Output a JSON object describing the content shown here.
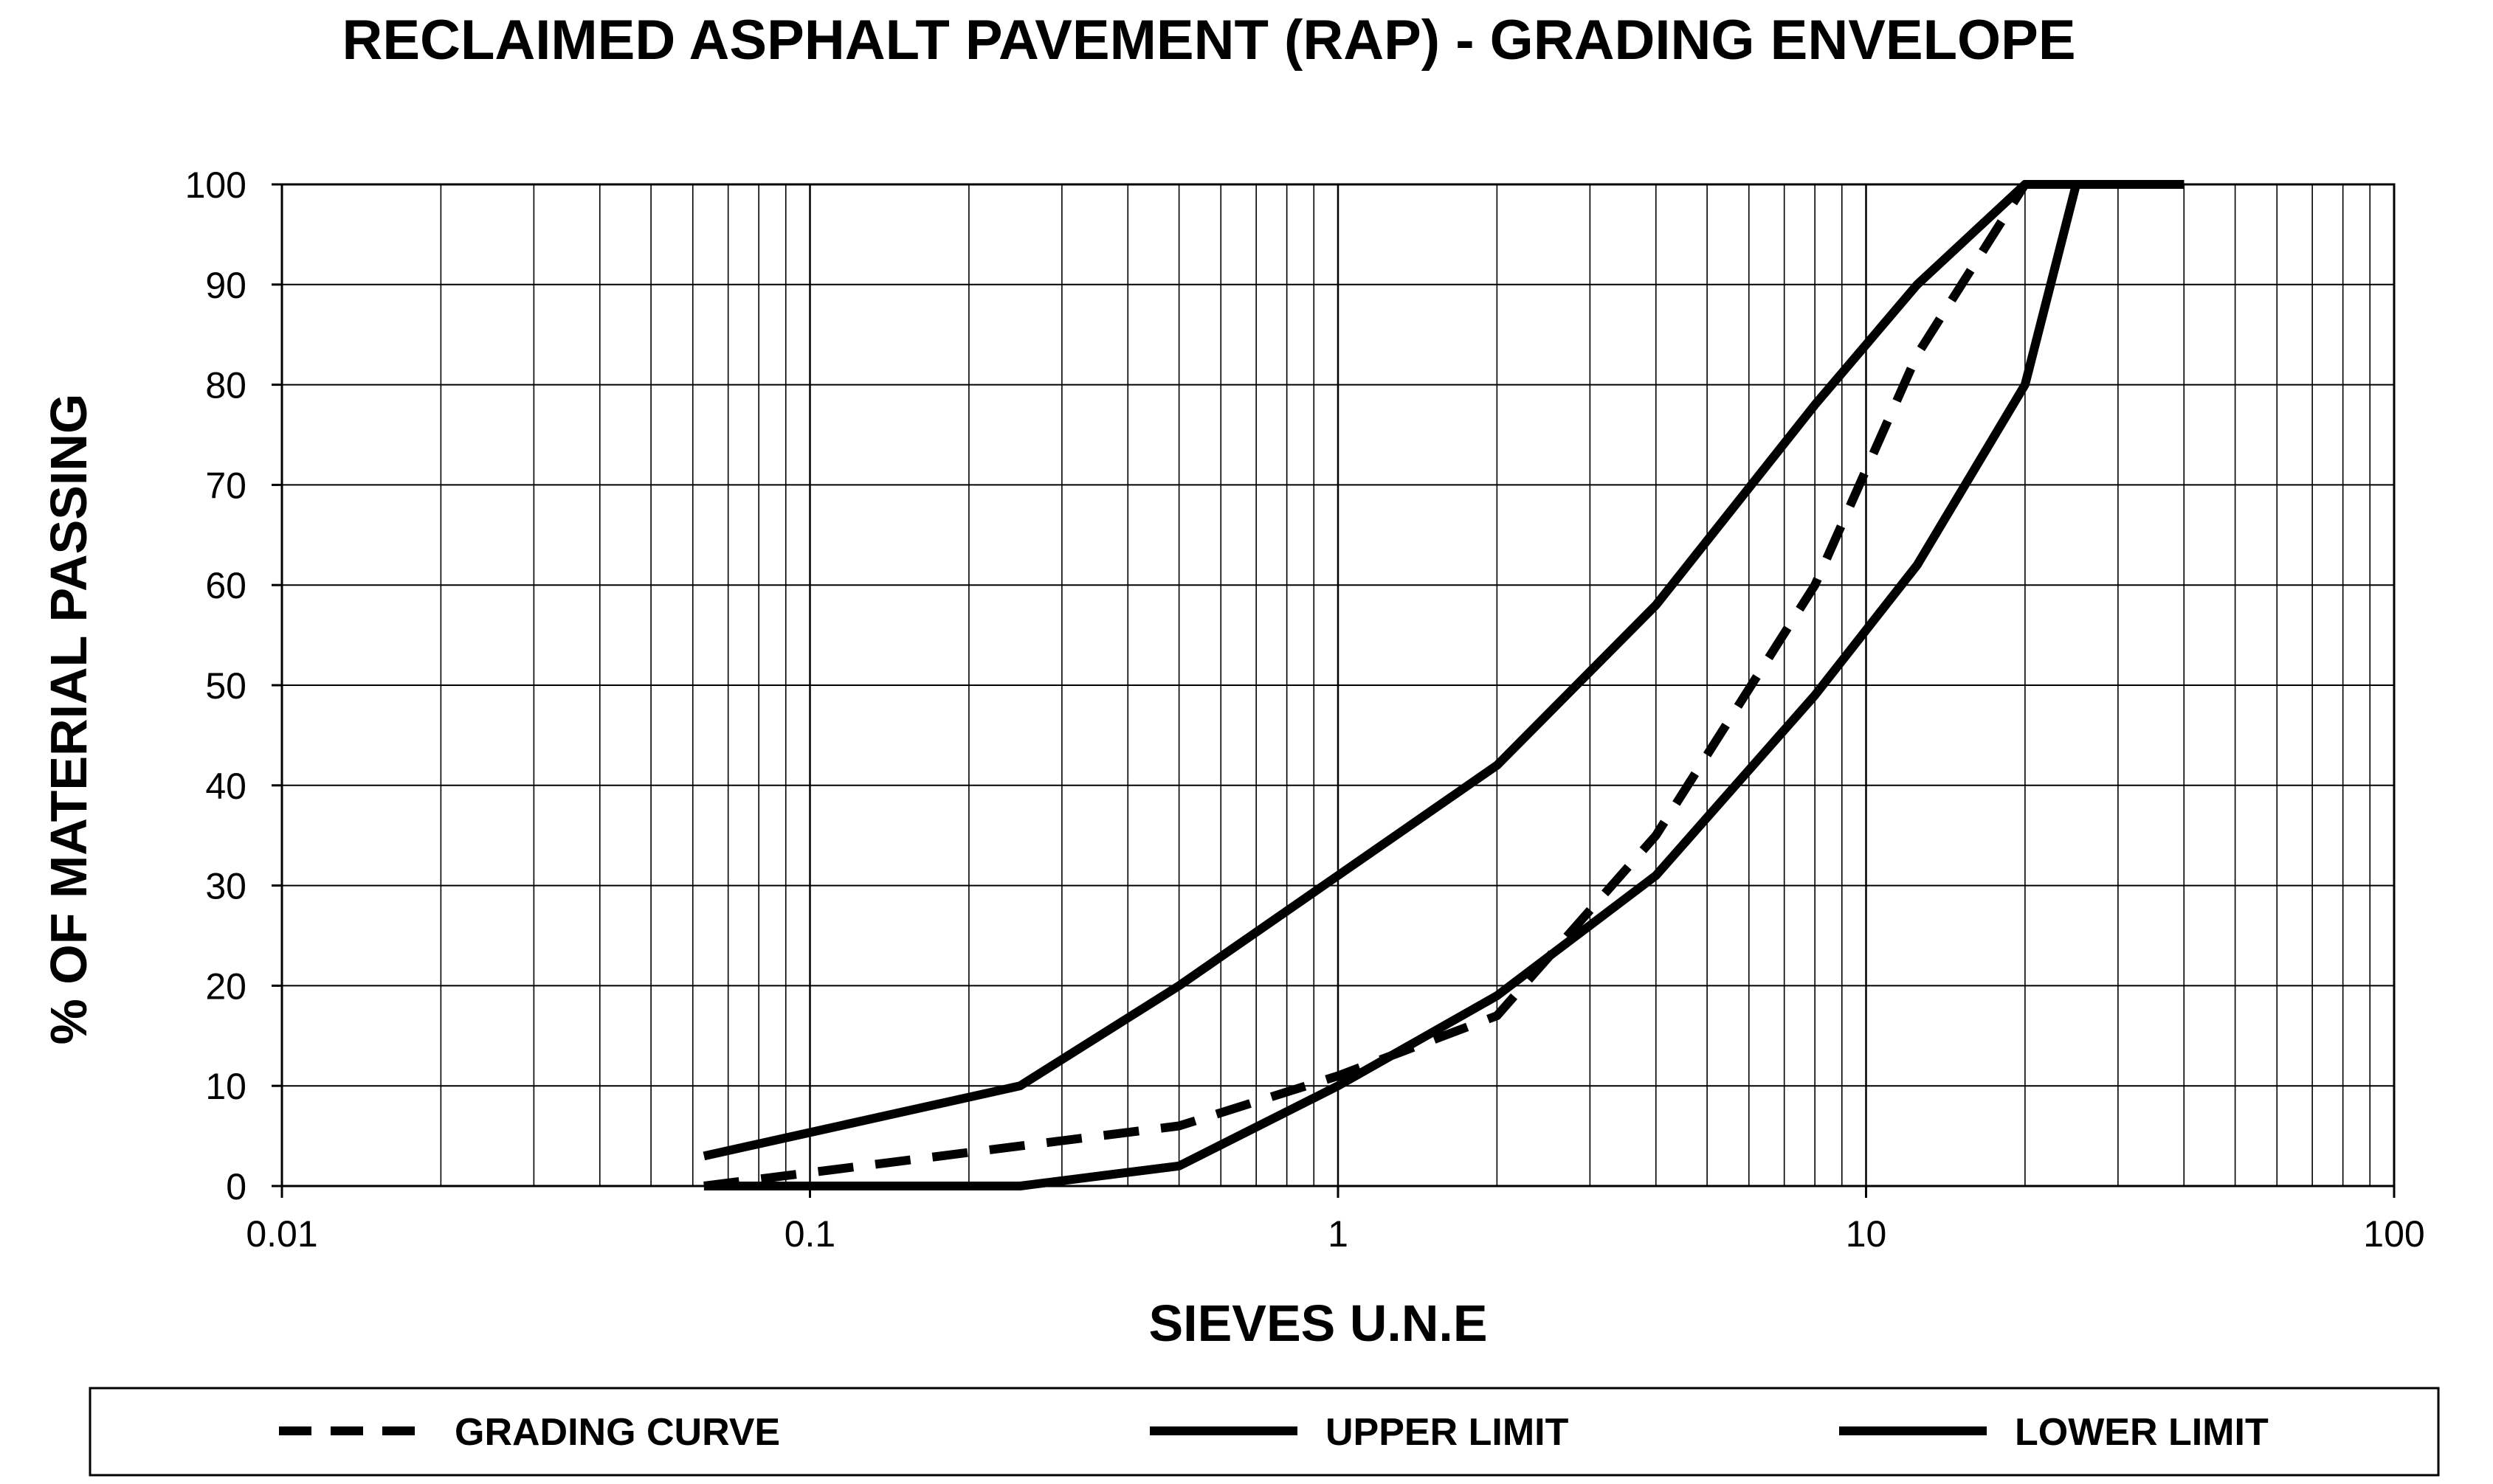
{
  "chart_data": {
    "type": "line",
    "title": "RECLAIMED ASPHALT PAVEMENT (RAP) - GRADING ENVELOPE",
    "xlabel": "SIEVES U.N.E",
    "ylabel": "% OF MATERIAL PASSING",
    "xscale": "log",
    "xlim": [
      0.01,
      100
    ],
    "ylim": [
      0,
      100
    ],
    "x_ticks": [
      "0.01",
      "0.1",
      "1",
      "10",
      "100"
    ],
    "y_ticks": [
      "0",
      "10",
      "20",
      "30",
      "40",
      "50",
      "60",
      "70",
      "80",
      "90",
      "100"
    ],
    "grid": true,
    "legend_position": "bottom",
    "series": [
      {
        "name": "GRADING CURVE",
        "style": "dashed",
        "color": "#000000",
        "x": [
          0.063,
          0.25,
          0.5,
          1,
          2,
          4,
          8,
          12.5,
          20,
          25,
          40
        ],
        "y": [
          0,
          4,
          6,
          11,
          17,
          35,
          60,
          83,
          100,
          100,
          100
        ]
      },
      {
        "name": "UPPER LIMIT",
        "style": "solid",
        "color": "#000000",
        "x": [
          0.063,
          0.25,
          0.5,
          1,
          2,
          4,
          8,
          12.5,
          20,
          25,
          40
        ],
        "y": [
          3,
          10,
          20,
          31,
          42,
          58,
          78,
          90,
          100,
          100,
          100
        ]
      },
      {
        "name": "LOWER LIMIT",
        "style": "solid",
        "color": "#000000",
        "x": [
          0.063,
          0.25,
          0.5,
          1,
          2,
          4,
          8,
          12.5,
          20,
          25,
          40
        ],
        "y": [
          0,
          0,
          2,
          10,
          19,
          31,
          49,
          62,
          80,
          100,
          100
        ]
      }
    ]
  }
}
